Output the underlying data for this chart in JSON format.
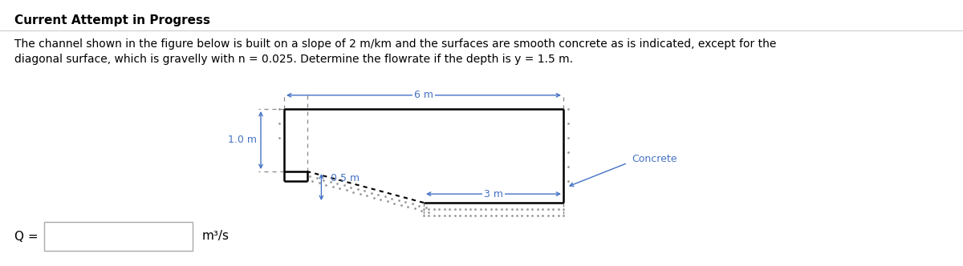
{
  "title": "Current Attempt in Progress",
  "line1": "The channel shown in the figure below is built on a slope of 2 m/km and the surfaces are smooth concrete as is indicated, except for the",
  "line2": "diagonal surface, which is gravelly with n = 0.025. Determine the flowrate if the depth is y = 1.5 m.",
  "bg_color": "#ffffff",
  "title_color": "#000000",
  "text_color": "#000000",
  "label_color": "#4472c4",
  "concrete_label": "Concrete",
  "dim_6m": "6 m",
  "dim_3m": "3 m",
  "dim_1m": "1.0 m",
  "dim_05m": "0.5 m",
  "q_label": "Q =",
  "unit_label": "m³/s",
  "line_color": "#000000",
  "sep_color": "#cccccc",
  "box_edge_color": "#aaaaaa",
  "dot_color": "#999999",
  "arrow_color": "#4472c4",
  "title_fontsize": 11,
  "body_fontsize": 10,
  "label_fontsize": 9,
  "q_fontsize": 11,
  "channel_lw": 1.8,
  "diag_lw": 1.5,
  "arrow_lw": 1.0,
  "note_italic": false
}
